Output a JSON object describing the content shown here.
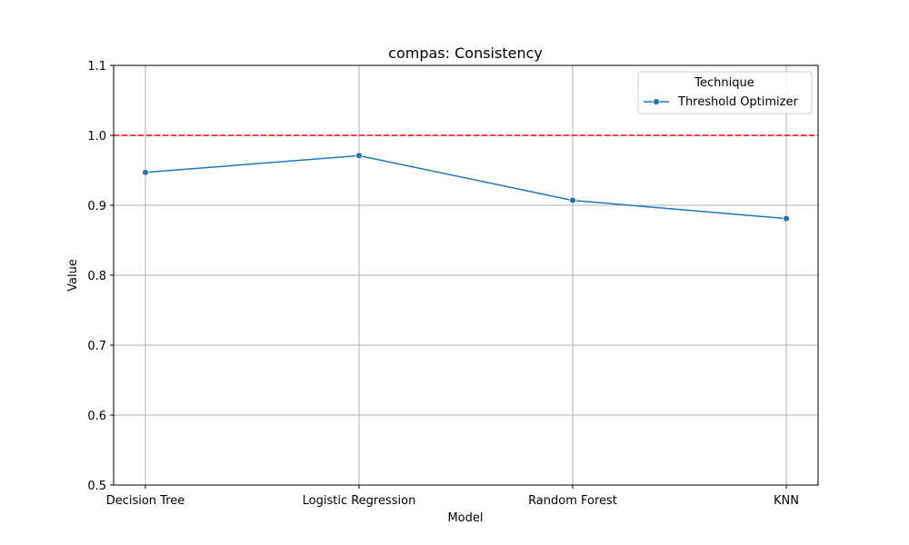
{
  "chart_data": {
    "type": "line",
    "title": "compas: Consistency",
    "xlabel": "Model",
    "ylabel": "Value",
    "categories": [
      "Decision Tree",
      "Logistic Regression",
      "Random Forest",
      "KNN"
    ],
    "ylim": [
      0.5,
      1.1
    ],
    "yticks": [
      "0.5",
      "0.6",
      "0.7",
      "0.8",
      "0.9",
      "1.0",
      "1.1"
    ],
    "grid": true,
    "legend": {
      "title": "Technique",
      "placement": "top-right"
    },
    "series": [
      {
        "name": "Threshold Optimizer",
        "color": "#1f77b4",
        "values": [
          0.947,
          0.971,
          0.907,
          0.881
        ]
      }
    ],
    "reference_line": {
      "value": 1.0,
      "color": "#ff0000",
      "style": "dashed"
    }
  }
}
